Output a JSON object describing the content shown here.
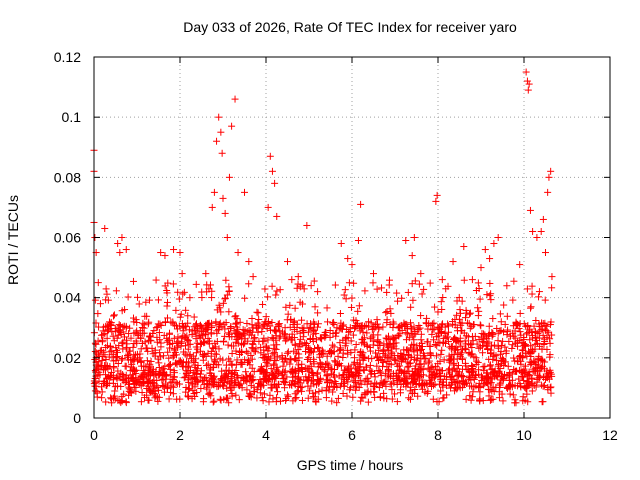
{
  "chart_data": {
    "type": "scatter",
    "title": "Day 033 of 2026, Rate Of TEC Index for receiver yaro",
    "xlabel": "GPS time / hours",
    "ylabel": "ROTI / TECUs",
    "xlim": [
      0,
      12
    ],
    "ylim": [
      0,
      0.12
    ],
    "x_ticks": [
      "0",
      "2",
      "4",
      "6",
      "8",
      "10",
      "12"
    ],
    "y_ticks": [
      "0",
      "0.02",
      "0.04",
      "0.06",
      "0.08",
      "0.1",
      "0.12"
    ],
    "grid": true,
    "marker": "+",
    "color": "#ff0000",
    "data_x_range": [
      0,
      10.65
    ],
    "baseline": {
      "min": 0.005,
      "typical_low": 0.01,
      "typical_high": 0.032
    },
    "series": [
      {
        "name": "ROTI",
        "points": [
          [
            0.0,
            0.089
          ],
          [
            0.0,
            0.082
          ],
          [
            0.0,
            0.065
          ],
          [
            0.02,
            0.06
          ],
          [
            0.05,
            0.055
          ],
          [
            0.1,
            0.045
          ],
          [
            0.15,
            0.038
          ],
          [
            0.25,
            0.063
          ],
          [
            0.55,
            0.058
          ],
          [
            0.6,
            0.055
          ],
          [
            0.65,
            0.06
          ],
          [
            0.75,
            0.056
          ],
          [
            1.55,
            0.055
          ],
          [
            1.65,
            0.054
          ],
          [
            1.85,
            0.056
          ],
          [
            2.0,
            0.055
          ],
          [
            2.05,
            0.048
          ],
          [
            2.6,
            0.048
          ],
          [
            2.75,
            0.07
          ],
          [
            2.8,
            0.075
          ],
          [
            2.85,
            0.092
          ],
          [
            2.9,
            0.1
          ],
          [
            2.95,
            0.095
          ],
          [
            2.98,
            0.088
          ],
          [
            3.0,
            0.073
          ],
          [
            3.05,
            0.068
          ],
          [
            3.1,
            0.06
          ],
          [
            3.15,
            0.08
          ],
          [
            3.2,
            0.097
          ],
          [
            3.28,
            0.106
          ],
          [
            3.35,
            0.055
          ],
          [
            3.5,
            0.075
          ],
          [
            3.6,
            0.052
          ],
          [
            3.7,
            0.047
          ],
          [
            4.05,
            0.07
          ],
          [
            4.1,
            0.087
          ],
          [
            4.15,
            0.082
          ],
          [
            4.2,
            0.078
          ],
          [
            4.25,
            0.067
          ],
          [
            4.5,
            0.052
          ],
          [
            4.6,
            0.046
          ],
          [
            4.75,
            0.047
          ],
          [
            4.95,
            0.064
          ],
          [
            5.05,
            0.044
          ],
          [
            5.2,
            0.042
          ],
          [
            5.75,
            0.058
          ],
          [
            5.9,
            0.053
          ],
          [
            6.0,
            0.051
          ],
          [
            6.15,
            0.059
          ],
          [
            6.2,
            0.071
          ],
          [
            6.5,
            0.048
          ],
          [
            7.25,
            0.059
          ],
          [
            7.4,
            0.054
          ],
          [
            7.45,
            0.06
          ],
          [
            7.6,
            0.048
          ],
          [
            7.95,
            0.072
          ],
          [
            7.98,
            0.074
          ],
          [
            8.1,
            0.046
          ],
          [
            8.35,
            0.052
          ],
          [
            8.6,
            0.057
          ],
          [
            8.8,
            0.046
          ],
          [
            9.0,
            0.05
          ],
          [
            9.1,
            0.056
          ],
          [
            9.2,
            0.053
          ],
          [
            9.3,
            0.058
          ],
          [
            9.4,
            0.06
          ],
          [
            9.9,
            0.051
          ],
          [
            10.05,
            0.115
          ],
          [
            10.08,
            0.112
          ],
          [
            10.1,
            0.109
          ],
          [
            10.12,
            0.111
          ],
          [
            10.15,
            0.069
          ],
          [
            10.2,
            0.062
          ],
          [
            10.3,
            0.06
          ],
          [
            10.4,
            0.062
          ],
          [
            10.45,
            0.066
          ],
          [
            10.5,
            0.055
          ],
          [
            10.55,
            0.075
          ],
          [
            10.58,
            0.08
          ],
          [
            10.62,
            0.082
          ],
          [
            10.65,
            0.047
          ]
        ]
      }
    ]
  }
}
